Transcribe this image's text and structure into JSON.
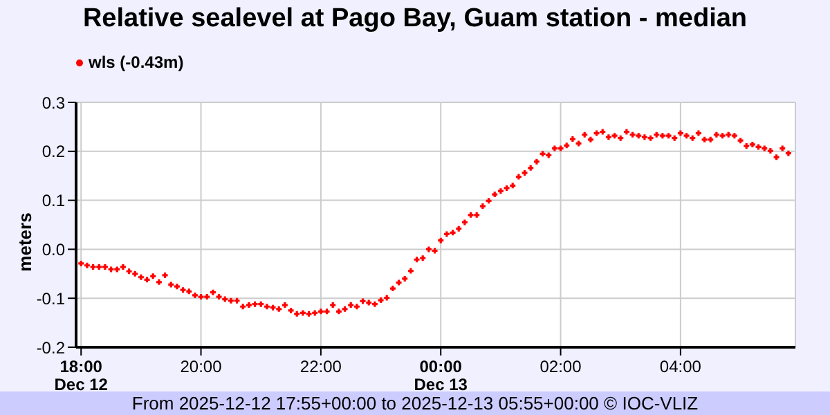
{
  "chart_data": {
    "type": "scatter",
    "title": "Relative sealevel at Pago Bay, Guam station - median",
    "ylabel": "meters",
    "annotations": [
      "From 2025-12-12 17:55+00:00 to 2025-12-13 05:55+00:00 © IOC-VLIZ"
    ],
    "x": [
      "2025-12-12T18:00",
      "2025-12-12T18:06",
      "2025-12-12T18:12",
      "2025-12-12T18:18",
      "2025-12-12T18:24",
      "2025-12-12T18:30",
      "2025-12-12T18:36",
      "2025-12-12T18:42",
      "2025-12-12T18:48",
      "2025-12-12T18:54",
      "2025-12-12T19:00",
      "2025-12-12T19:06",
      "2025-12-12T19:12",
      "2025-12-12T19:18",
      "2025-12-12T19:24",
      "2025-12-12T19:30",
      "2025-12-12T19:36",
      "2025-12-12T19:42",
      "2025-12-12T19:48",
      "2025-12-12T19:54",
      "2025-12-12T20:00",
      "2025-12-12T20:06",
      "2025-12-12T20:12",
      "2025-12-12T20:18",
      "2025-12-12T20:24",
      "2025-12-12T20:30",
      "2025-12-12T20:36",
      "2025-12-12T20:42",
      "2025-12-12T20:48",
      "2025-12-12T20:54",
      "2025-12-12T21:00",
      "2025-12-12T21:06",
      "2025-12-12T21:12",
      "2025-12-12T21:18",
      "2025-12-12T21:24",
      "2025-12-12T21:30",
      "2025-12-12T21:36",
      "2025-12-12T21:42",
      "2025-12-12T21:48",
      "2025-12-12T21:54",
      "2025-12-12T22:00",
      "2025-12-12T22:06",
      "2025-12-12T22:12",
      "2025-12-12T22:18",
      "2025-12-12T22:24",
      "2025-12-12T22:30",
      "2025-12-12T22:36",
      "2025-12-12T22:42",
      "2025-12-12T22:48",
      "2025-12-12T22:54",
      "2025-12-12T23:00",
      "2025-12-12T23:06",
      "2025-12-12T23:12",
      "2025-12-12T23:18",
      "2025-12-12T23:24",
      "2025-12-12T23:30",
      "2025-12-12T23:36",
      "2025-12-12T23:42",
      "2025-12-12T23:48",
      "2025-12-12T23:54",
      "2025-12-13T00:00",
      "2025-12-13T00:06",
      "2025-12-13T00:12",
      "2025-12-13T00:18",
      "2025-12-13T00:24",
      "2025-12-13T00:30",
      "2025-12-13T00:36",
      "2025-12-13T00:42",
      "2025-12-13T00:48",
      "2025-12-13T00:54",
      "2025-12-13T01:00",
      "2025-12-13T01:06",
      "2025-12-13T01:12",
      "2025-12-13T01:18",
      "2025-12-13T01:24",
      "2025-12-13T01:30",
      "2025-12-13T01:36",
      "2025-12-13T01:42",
      "2025-12-13T01:48",
      "2025-12-13T01:54",
      "2025-12-13T02:00",
      "2025-12-13T02:06",
      "2025-12-13T02:12",
      "2025-12-13T02:18",
      "2025-12-13T02:24",
      "2025-12-13T02:30",
      "2025-12-13T02:36",
      "2025-12-13T02:42",
      "2025-12-13T02:48",
      "2025-12-13T02:54",
      "2025-12-13T03:00",
      "2025-12-13T03:06",
      "2025-12-13T03:12",
      "2025-12-13T03:18",
      "2025-12-13T03:24",
      "2025-12-13T03:30",
      "2025-12-13T03:36",
      "2025-12-13T03:42",
      "2025-12-13T03:48",
      "2025-12-13T03:54",
      "2025-12-13T04:00",
      "2025-12-13T04:06",
      "2025-12-13T04:12",
      "2025-12-13T04:18",
      "2025-12-13T04:24",
      "2025-12-13T04:30",
      "2025-12-13T04:36",
      "2025-12-13T04:42",
      "2025-12-13T04:48",
      "2025-12-13T04:54",
      "2025-12-13T05:00",
      "2025-12-13T05:06",
      "2025-12-13T05:12",
      "2025-12-13T05:18",
      "2025-12-13T05:24",
      "2025-12-13T05:30",
      "2025-12-13T05:36",
      "2025-12-13T05:42",
      "2025-12-13T05:48"
    ],
    "series": [
      {
        "name": "wls (-0.43m)",
        "color": "#ff0000",
        "values": [
          -0.029,
          -0.033,
          -0.036,
          -0.036,
          -0.036,
          -0.041,
          -0.041,
          -0.036,
          -0.045,
          -0.05,
          -0.057,
          -0.062,
          -0.055,
          -0.067,
          -0.053,
          -0.072,
          -0.076,
          -0.083,
          -0.086,
          -0.094,
          -0.097,
          -0.097,
          -0.088,
          -0.097,
          -0.102,
          -0.105,
          -0.105,
          -0.117,
          -0.114,
          -0.112,
          -0.112,
          -0.117,
          -0.119,
          -0.122,
          -0.114,
          -0.125,
          -0.132,
          -0.13,
          -0.132,
          -0.13,
          -0.127,
          -0.127,
          -0.114,
          -0.127,
          -0.122,
          -0.114,
          -0.117,
          -0.106,
          -0.109,
          -0.112,
          -0.104,
          -0.099,
          -0.08,
          -0.068,
          -0.06,
          -0.044,
          -0.021,
          -0.018,
          0.0,
          -0.003,
          0.018,
          0.031,
          0.034,
          0.042,
          0.055,
          0.07,
          0.07,
          0.088,
          0.099,
          0.112,
          0.119,
          0.125,
          0.13,
          0.148,
          0.156,
          0.166,
          0.179,
          0.195,
          0.192,
          0.206,
          0.206,
          0.212,
          0.225,
          0.216,
          0.234,
          0.224,
          0.237,
          0.24,
          0.229,
          0.232,
          0.227,
          0.24,
          0.234,
          0.232,
          0.229,
          0.227,
          0.234,
          0.232,
          0.232,
          0.227,
          0.237,
          0.232,
          0.227,
          0.237,
          0.224,
          0.224,
          0.234,
          0.232,
          0.234,
          0.232,
          0.222,
          0.211,
          0.214,
          0.209,
          0.206,
          0.201,
          0.188,
          0.206,
          0.196
        ]
      }
    ],
    "xlim": [
      "2025-12-12T17:55",
      "2025-12-13T05:55"
    ],
    "xticks": [
      {
        "value": "2025-12-12T18:00",
        "label": "18:00\nDec 12"
      },
      {
        "value": "2025-12-12T20:00",
        "label": "20:00"
      },
      {
        "value": "2025-12-12T22:00",
        "label": "22:00"
      },
      {
        "value": "2025-12-13T00:00",
        "label": "00:00\nDec 13"
      },
      {
        "value": "2025-12-13T02:00",
        "label": "02:00"
      },
      {
        "value": "2025-12-13T04:00",
        "label": "04:00"
      }
    ],
    "ylim": [
      -0.2,
      0.3
    ],
    "yticks": [
      -0.2,
      -0.1,
      {
        "value": 0,
        "label": "0.0"
      },
      0.1,
      0.2,
      0.3
    ],
    "grid": true,
    "legend": "top left",
    "marker": "cross"
  }
}
